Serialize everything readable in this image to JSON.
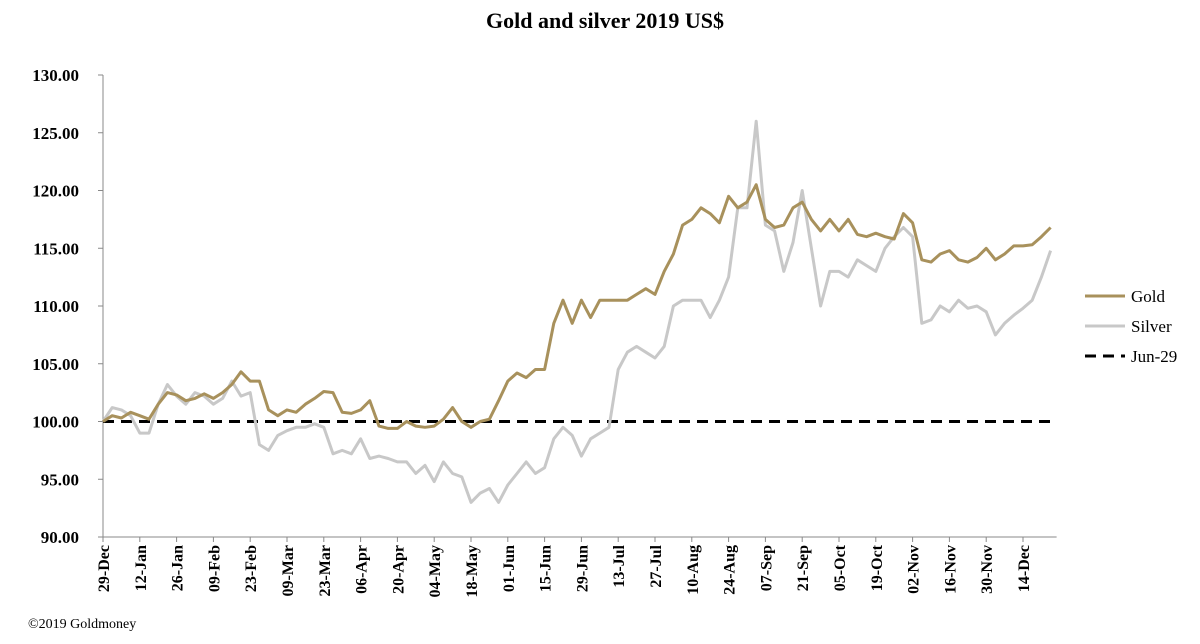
{
  "chart_data": {
    "type": "line",
    "title": "Gold and silver 2019  US$",
    "footer": "©2019 Goldmoney",
    "categories": [
      "29-Dec",
      null,
      null,
      null,
      "12-Jan",
      null,
      null,
      null,
      "26-Jan",
      null,
      null,
      null,
      "09-Feb",
      null,
      null,
      null,
      "23-Feb",
      null,
      null,
      null,
      "09-Mar",
      null,
      null,
      null,
      "23-Mar",
      null,
      null,
      null,
      "06-Apr",
      null,
      null,
      null,
      "20-Apr",
      null,
      null,
      null,
      "04-May",
      null,
      null,
      null,
      "18-May",
      null,
      null,
      null,
      "01-Jun",
      null,
      null,
      null,
      "15-Jun",
      null,
      null,
      null,
      "29-Jun",
      null,
      null,
      null,
      "13-Jul",
      null,
      null,
      null,
      "27-Jul",
      null,
      null,
      null,
      "10-Aug",
      null,
      null,
      null,
      "24-Aug",
      null,
      null,
      null,
      "07-Sep",
      null,
      null,
      null,
      "21-Sep",
      null,
      null,
      null,
      "05-Oct",
      null,
      null,
      null,
      "19-Oct",
      null,
      null,
      null,
      "02-Nov",
      null,
      null,
      null,
      "16-Nov",
      null,
      null,
      null,
      "30-Nov",
      null,
      null,
      null,
      "14-Dec",
      null,
      null,
      null
    ],
    "series": [
      {
        "name": "Gold",
        "color": "#a8915c",
        "values": [
          100,
          100.5,
          100.3,
          100.8,
          100.5,
          100.2,
          101.5,
          102.5,
          102.3,
          101.8,
          102,
          102.4,
          102,
          102.5,
          103.2,
          104.3,
          103.5,
          103.5,
          101,
          100.5,
          101,
          100.8,
          101.5,
          102,
          102.6,
          102.5,
          100.8,
          100.7,
          101,
          101.8,
          99.6,
          99.4,
          99.4,
          100,
          99.6,
          99.5,
          99.6,
          100.2,
          101.2,
          100,
          99.5,
          100,
          100.2,
          101.8,
          103.5,
          104.2,
          103.8,
          104.5,
          104.5,
          108.5,
          110.5,
          108.5,
          110.5,
          109,
          110.5,
          110.5,
          110.5,
          110.5,
          111,
          111.5,
          111,
          113,
          114.5,
          117,
          117.5,
          118.5,
          118,
          117.2,
          119.5,
          118.5,
          119,
          120.5,
          117.5,
          116.8,
          117,
          118.5,
          119,
          117.5,
          116.5,
          117.5,
          116.5,
          117.5,
          116.2,
          116,
          116.3,
          116,
          115.8,
          118,
          117.2,
          114,
          113.8,
          114.5,
          114.8,
          114,
          113.8,
          114.2,
          115,
          114,
          114.5,
          115.2,
          115.2,
          115.3,
          116,
          116.8
        ]
      },
      {
        "name": "Silver",
        "color": "#c8c8c8",
        "values": [
          100,
          101.2,
          101,
          100.5,
          99,
          99,
          101.5,
          103.2,
          102.2,
          101.5,
          102.5,
          102.2,
          101.5,
          102,
          103.5,
          102.2,
          102.5,
          98,
          97.5,
          98.8,
          99.2,
          99.5,
          99.5,
          99.8,
          99.5,
          97.2,
          97.5,
          97.2,
          98.5,
          96.8,
          97,
          96.8,
          96.5,
          96.5,
          95.5,
          96.2,
          94.8,
          96.5,
          95.5,
          95.2,
          93,
          93.8,
          94.2,
          93,
          94.5,
          95.5,
          96.5,
          95.5,
          96,
          98.5,
          99.5,
          98.8,
          97,
          98.5,
          99,
          99.5,
          104.5,
          106,
          106.5,
          106,
          105.5,
          106.5,
          110,
          110.5,
          110.5,
          110.5,
          109,
          110.5,
          112.5,
          118.5,
          118.5,
          126,
          117,
          116.5,
          113,
          115.5,
          120,
          115,
          110,
          113,
          113,
          112.5,
          114,
          113.5,
          113,
          115,
          116,
          116.8,
          116,
          108.5,
          108.8,
          110,
          109.5,
          110.5,
          109.8,
          110,
          109.5,
          107.5,
          108.5,
          109.2,
          109.8,
          110.5,
          112.5,
          114.8
        ]
      }
    ],
    "reference_line": {
      "name": "Jun-29",
      "value": 100,
      "color": "#000000"
    },
    "ylim": [
      90,
      130
    ],
    "yticks": [
      {
        "value": 90,
        "label": "90.00"
      },
      {
        "value": 95,
        "label": "95.00"
      },
      {
        "value": 100,
        "label": "100.00"
      },
      {
        "value": 105,
        "label": "105.00"
      },
      {
        "value": 110,
        "label": "110.00"
      },
      {
        "value": 115,
        "label": "115.00"
      },
      {
        "value": 120,
        "label": "120.00"
      },
      {
        "value": 125,
        "label": "125.00"
      },
      {
        "value": 130,
        "label": "130.00"
      }
    ],
    "legend": "right"
  }
}
